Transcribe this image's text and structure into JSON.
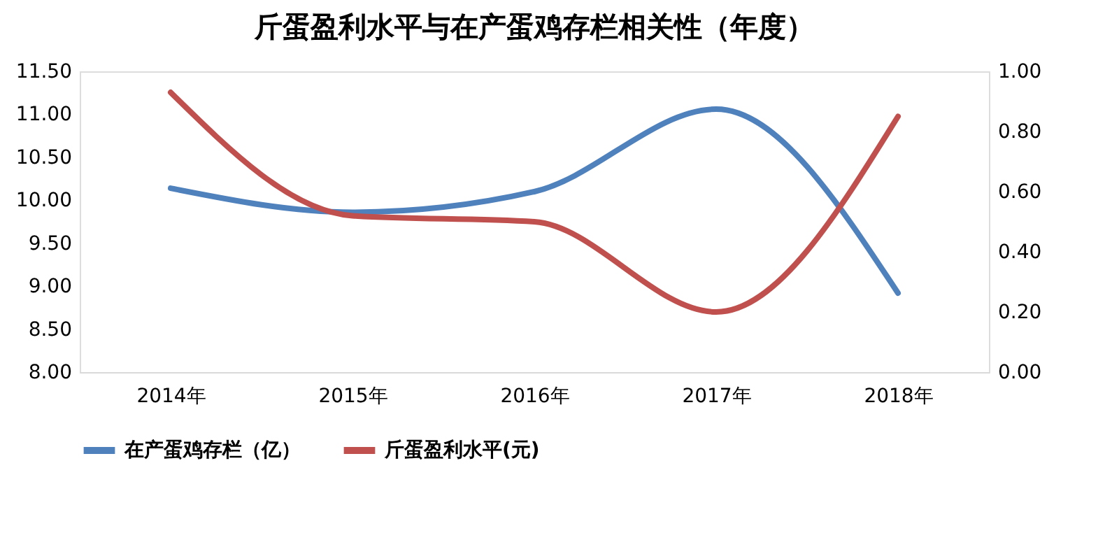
{
  "chart_data": {
    "type": "line",
    "title": "斤蛋盈利水平与在产蛋鸡存栏相关性（年度）",
    "categories": [
      "2014年",
      "2015年",
      "2016年",
      "2017年",
      "2018年"
    ],
    "series": [
      {
        "name": "在产蛋鸡存栏（亿）",
        "color": "#4f81bd",
        "values": [
          10.14,
          9.86,
          10.1,
          11.06,
          8.92
        ]
      },
      {
        "name": "斤蛋盈利水平(元)",
        "color": "#c0504d",
        "values": [
          0.93,
          0.52,
          0.5,
          0.2,
          0.85
        ],
        "axis": "y2"
      }
    ],
    "ylim": [
      8.0,
      11.5
    ],
    "yticks": [
      {
        "value": 8.0,
        "label": "8.00"
      },
      {
        "value": 8.5,
        "label": "8.50"
      },
      {
        "value": 9.0,
        "label": "9.00"
      },
      {
        "value": 9.5,
        "label": "9.50"
      },
      {
        "value": 10.0,
        "label": "10.00"
      },
      {
        "value": 10.5,
        "label": "10.50"
      },
      {
        "value": 11.0,
        "label": "11.00"
      },
      {
        "value": 11.5,
        "label": "11.50"
      }
    ],
    "y2lim": [
      0.0,
      1.0
    ],
    "y2ticks": [
      {
        "value": 0.0,
        "label": "0.00"
      },
      {
        "value": 0.2,
        "label": "0.20"
      },
      {
        "value": 0.4,
        "label": "0.40"
      },
      {
        "value": 0.6,
        "label": "0.60"
      },
      {
        "value": 0.8,
        "label": "0.80"
      },
      {
        "value": 1.0,
        "label": "1.00"
      }
    ],
    "grid": false,
    "legend": "bottom",
    "marker": "none",
    "line_style": "solid"
  }
}
